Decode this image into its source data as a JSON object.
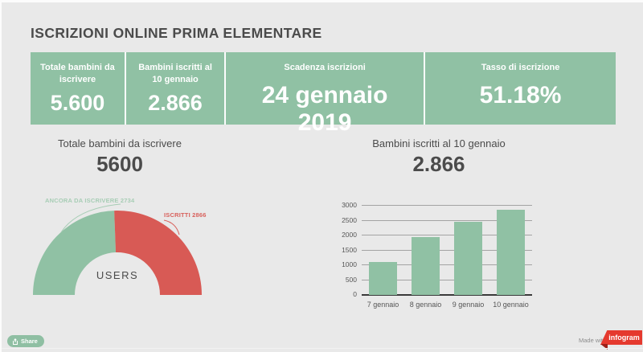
{
  "header": {
    "title": "ISCRIZIONI ONLINE PRIMA ELEMENTARE"
  },
  "stats": [
    {
      "label": "Totale bambini da iscrivere",
      "value": "5.600"
    },
    {
      "label": "Bambini iscritti al 10 gennaio",
      "value": "2.866"
    },
    {
      "label": "Scadenza iscrizioni",
      "value": "24 gennaio 2019"
    },
    {
      "label": "Tasso di iscrizione",
      "value": "51.18%"
    }
  ],
  "footer": {
    "share_label": "Share",
    "made_with_label": "Made with",
    "brand_label": "infogram"
  },
  "colors": {
    "stat_green": "#90c1a4",
    "gauge_green": "#90c1a4",
    "gauge_red": "#d85a55",
    "label_light_green": "#a7cdb5",
    "label_red": "#d8605b",
    "brand_red": "#e5392e",
    "dark_text": "#4b4b4b",
    "axis_text": "#565656",
    "background": "#e9e9e9"
  },
  "chart_data": [
    {
      "type": "pie",
      "subtype": "half-donut-gauge",
      "title": "Totale bambini da iscrivere",
      "display_value": "5600",
      "center_label": "USERS",
      "total": 5600,
      "slices": [
        {
          "name": "ANCORA DA ISCRIVERE",
          "value": 2734,
          "color": "#90c1a4"
        },
        {
          "name": "ISCRITTI",
          "value": 2866,
          "color": "#d85a55"
        }
      ],
      "legend_position": "callout-labels",
      "grid": false
    },
    {
      "type": "bar",
      "title": "Bambini iscritti al 10 gennaio",
      "display_value": "2.866",
      "categories": [
        "7 gennaio",
        "8 gennaio",
        "9 gennaio",
        "10 gennaio"
      ],
      "values": [
        1100,
        1950,
        2450,
        2866
      ],
      "bar_color": "#90c1a4",
      "xlabel": "",
      "ylabel": "",
      "ylim": [
        0,
        3000
      ],
      "yticks": [
        0,
        500,
        1000,
        1500,
        2000,
        2500,
        3000
      ],
      "grid": true,
      "legend_position": "none"
    }
  ]
}
